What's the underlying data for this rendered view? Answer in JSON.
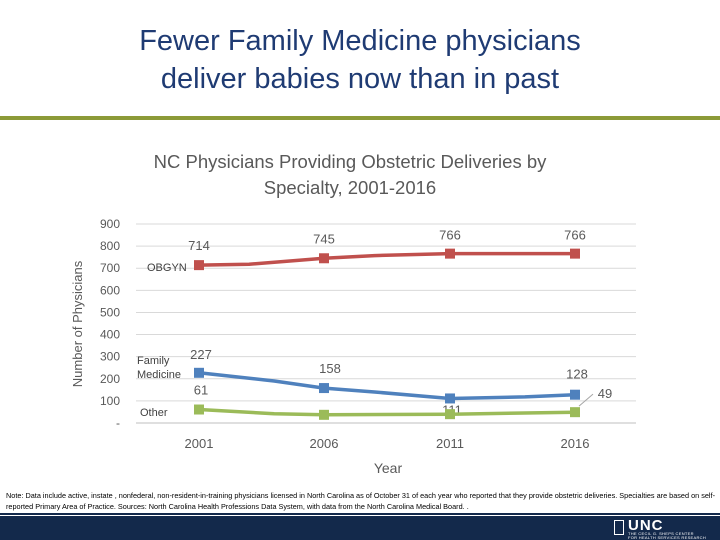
{
  "slide": {
    "title_line1": "Fewer Family Medicine physicians",
    "title_line2": "deliver babies now than in past",
    "note": "Note: Data include active, instate , nonfederal, non-resident-in-training physicians licensed in North Carolina as of October 31 of each year who reported that they provide obstetric deliveries. Specialties are based on self-reported Primary Area of Practice. Sources: North Carolina Health Professions Data System, with data from the North Carolina Medical Board. .",
    "logo_text": "UNC",
    "logo_sub1": "THE CECIL G. SHEPS CENTER",
    "logo_sub2": "FOR HEALTH SERVICES RESEARCH"
  },
  "chart_data": {
    "type": "line",
    "title_line1": "NC Physicians Providing Obstetric Deliveries by",
    "title_line2": "Specialty, 2001-2016",
    "xlabel": "Year",
    "ylabel": "Number of Physicians",
    "ylim": [
      0,
      900
    ],
    "yticks": [
      0,
      100,
      200,
      300,
      400,
      500,
      600,
      700,
      800,
      900
    ],
    "ytick_labels": [
      "-",
      "100",
      "200",
      "300",
      "400",
      "500",
      "600",
      "700",
      "800",
      "900"
    ],
    "x": [
      2001,
      2006,
      2011,
      2016
    ],
    "x_labels": [
      "2001",
      "2006",
      "2011",
      "2016"
    ],
    "legend": "labels placed beside each series",
    "grid": "horizontal",
    "series": [
      {
        "name": "OBGYN",
        "color": "#c0504d",
        "values": [
          714,
          745,
          766,
          766
        ],
        "labels": [
          "714",
          "745",
          "766",
          "766"
        ],
        "path": [
          [
            2001,
            714
          ],
          [
            2003,
            718
          ],
          [
            2005,
            736
          ],
          [
            2006,
            745
          ],
          [
            2008,
            757
          ],
          [
            2011,
            766
          ],
          [
            2016,
            766
          ]
        ]
      },
      {
        "name_line1": "Family",
        "name_line2": "Medicine",
        "color": "#4f81bd",
        "values": [
          227,
          158,
          111,
          128
        ],
        "labels": [
          "227",
          "158",
          "111",
          "128"
        ],
        "path": [
          [
            2001,
            227
          ],
          [
            2002,
            215
          ],
          [
            2004,
            190
          ],
          [
            2006,
            158
          ],
          [
            2008,
            140
          ],
          [
            2011,
            111
          ],
          [
            2014,
            118
          ],
          [
            2016,
            128
          ]
        ]
      },
      {
        "name": "Other",
        "color": "#9bbb59",
        "values": [
          61,
          37,
          40,
          49
        ],
        "labels": [
          "61",
          "",
          "",
          "49"
        ],
        "path": [
          [
            2001,
            61
          ],
          [
            2004,
            42
          ],
          [
            2006,
            37
          ],
          [
            2011,
            40
          ],
          [
            2016,
            49
          ]
        ]
      }
    ]
  }
}
